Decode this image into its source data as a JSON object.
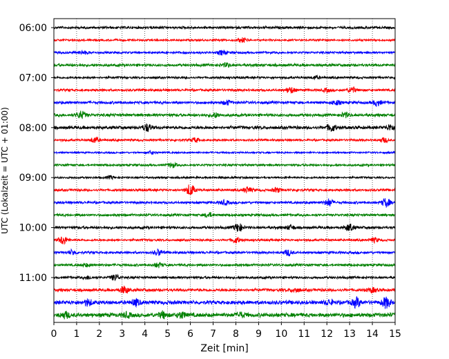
{
  "chart_data": {
    "type": "line",
    "title": "",
    "xlabel": "Zeit  [min]",
    "ylabel": "UTC (Lokalzeit = UTC + 01:00)",
    "xlim": [
      0,
      15
    ],
    "x_ticks": [
      "0",
      "1",
      "2",
      "3",
      "4",
      "5",
      "6",
      "7",
      "8",
      "9",
      "10",
      "11",
      "12",
      "13",
      "14",
      "15"
    ],
    "y_ticks": [
      "06:00",
      "07:00",
      "08:00",
      "09:00",
      "10:00",
      "11:00"
    ],
    "grid": "vertical dotted",
    "row_minutes": 15,
    "start_time": "06:00",
    "colors": [
      "#000000",
      "#ff0000",
      "#0000ff",
      "#008000"
    ],
    "rows": [
      {
        "start": "06:00",
        "color": "#000000",
        "amp": 2.0,
        "bursts": []
      },
      {
        "start": "06:15",
        "color": "#ff0000",
        "amp": 1.6,
        "bursts": [
          [
            8.3,
            3
          ]
        ]
      },
      {
        "start": "06:30",
        "color": "#0000ff",
        "amp": 1.8,
        "bursts": [
          [
            7.4,
            3
          ],
          [
            1.3,
            2
          ]
        ]
      },
      {
        "start": "06:45",
        "color": "#008000",
        "amp": 2.2,
        "bursts": [
          [
            7.6,
            2.5
          ]
        ]
      },
      {
        "start": "07:00",
        "color": "#000000",
        "amp": 1.8,
        "bursts": [
          [
            11.5,
            2
          ]
        ]
      },
      {
        "start": "07:15",
        "color": "#ff0000",
        "amp": 2.0,
        "bursts": [
          [
            10.4,
            4
          ],
          [
            13.1,
            4
          ],
          [
            12.0,
            2
          ]
        ]
      },
      {
        "start": "07:30",
        "color": "#0000ff",
        "amp": 2.2,
        "bursts": [
          [
            14.2,
            4
          ],
          [
            7.6,
            3
          ],
          [
            12.4,
            3
          ]
        ]
      },
      {
        "start": "07:45",
        "color": "#008000",
        "amp": 2.4,
        "bursts": [
          [
            1.2,
            5
          ],
          [
            7.1,
            3
          ],
          [
            12.8,
            3
          ]
        ]
      },
      {
        "start": "08:00",
        "color": "#000000",
        "amp": 2.6,
        "bursts": [
          [
            4.1,
            5
          ],
          [
            12.2,
            5
          ],
          [
            14.8,
            4
          ]
        ]
      },
      {
        "start": "08:15",
        "color": "#ff0000",
        "amp": 1.8,
        "bursts": [
          [
            1.8,
            4
          ],
          [
            6.2,
            3
          ],
          [
            14.5,
            3
          ]
        ]
      },
      {
        "start": "08:30",
        "color": "#0000ff",
        "amp": 1.4,
        "bursts": [
          [
            4.3,
            2
          ]
        ]
      },
      {
        "start": "08:45",
        "color": "#008000",
        "amp": 1.8,
        "bursts": [
          [
            5.2,
            3
          ]
        ]
      },
      {
        "start": "09:00",
        "color": "#000000",
        "amp": 1.6,
        "bursts": [
          [
            2.5,
            2
          ]
        ]
      },
      {
        "start": "09:15",
        "color": "#ff0000",
        "amp": 2.0,
        "bursts": [
          [
            6.0,
            8
          ],
          [
            8.5,
            4
          ],
          [
            9.8,
            3
          ]
        ]
      },
      {
        "start": "09:30",
        "color": "#0000ff",
        "amp": 2.0,
        "bursts": [
          [
            12.1,
            5
          ],
          [
            14.6,
            6
          ],
          [
            7.5,
            3
          ]
        ]
      },
      {
        "start": "09:45",
        "color": "#008000",
        "amp": 2.0,
        "bursts": [
          [
            6.8,
            3
          ]
        ]
      },
      {
        "start": "10:00",
        "color": "#000000",
        "amp": 2.2,
        "bursts": [
          [
            8.1,
            6
          ],
          [
            13.0,
            5
          ],
          [
            10.4,
            3
          ]
        ]
      },
      {
        "start": "10:15",
        "color": "#ff0000",
        "amp": 1.8,
        "bursts": [
          [
            0.4,
            6
          ],
          [
            8.0,
            4
          ],
          [
            14.1,
            3
          ]
        ]
      },
      {
        "start": "10:30",
        "color": "#0000ff",
        "amp": 2.0,
        "bursts": [
          [
            4.6,
            4
          ],
          [
            10.3,
            4
          ],
          [
            0.8,
            3
          ]
        ]
      },
      {
        "start": "10:45",
        "color": "#008000",
        "amp": 2.0,
        "bursts": [
          [
            4.6,
            3
          ],
          [
            1.4,
            2
          ]
        ]
      },
      {
        "start": "11:00",
        "color": "#000000",
        "amp": 2.0,
        "bursts": [
          [
            2.7,
            4
          ],
          [
            1.5,
            2
          ]
        ]
      },
      {
        "start": "11:15",
        "color": "#ff0000",
        "amp": 2.4,
        "bursts": [
          [
            3.1,
            5
          ],
          [
            10.6,
            3
          ],
          [
            14.0,
            3
          ]
        ]
      },
      {
        "start": "11:30",
        "color": "#0000ff",
        "amp": 3.2,
        "bursts": [
          [
            13.3,
            6
          ],
          [
            14.6,
            7
          ],
          [
            1.5,
            4
          ],
          [
            3.6,
            4
          ],
          [
            12.1,
            3
          ]
        ]
      },
      {
        "start": "11:45",
        "color": "#008000",
        "amp": 3.4,
        "bursts": [
          [
            0.5,
            4
          ],
          [
            4.8,
            4
          ],
          [
            5.6,
            4
          ],
          [
            3.2,
            3
          ],
          [
            8.2,
            3
          ]
        ]
      }
    ]
  }
}
